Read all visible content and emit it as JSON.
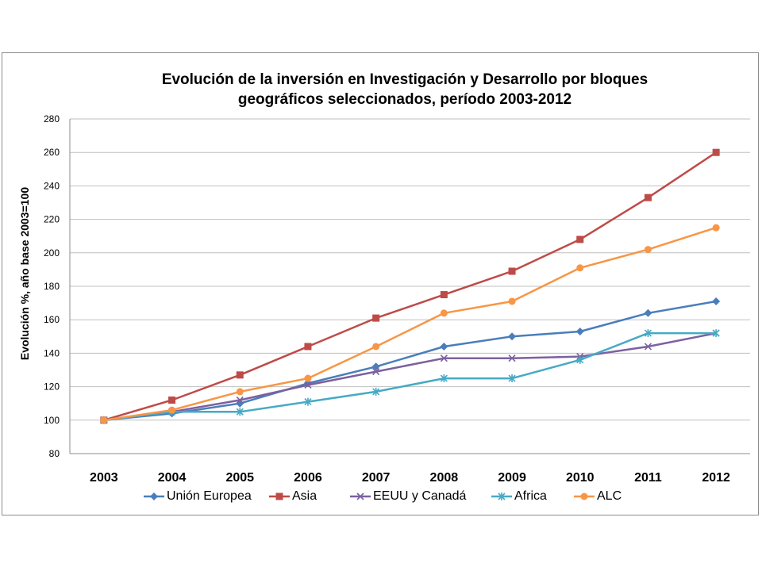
{
  "chart_data": {
    "type": "line",
    "title_lines": [
      "Evolución de la inversión en Investigación y Desarrollo por bloques",
      "geográficos seleccionados, período 2003-2012"
    ],
    "xlabel": "",
    "ylabel": "Evolución %, año base 2003=100",
    "x": [
      "2003",
      "2004",
      "2005",
      "2006",
      "2007",
      "2008",
      "2009",
      "2010",
      "2011",
      "2012"
    ],
    "ylim": [
      80,
      280
    ],
    "yticks": [
      80,
      100,
      120,
      140,
      160,
      180,
      200,
      220,
      240,
      260,
      280
    ],
    "grid": true,
    "legend_position": "bottom",
    "series": [
      {
        "name": "Unión Europea",
        "color": "#4a7ebb",
        "marker": "diamond",
        "values": [
          100,
          104,
          110,
          122,
          132,
          144,
          150,
          153,
          164,
          171
        ]
      },
      {
        "name": "Asia",
        "color": "#be4b48",
        "marker": "square",
        "values": [
          100,
          112,
          127,
          144,
          161,
          175,
          189,
          208,
          233,
          260
        ]
      },
      {
        "name": "EEUU y Canadá",
        "color": "#7d60a0",
        "marker": "x",
        "values": [
          100,
          105,
          112,
          121,
          129,
          137,
          137,
          138,
          144,
          152
        ]
      },
      {
        "name": "Africa",
        "color": "#46aac5",
        "marker": "asterisk",
        "values": [
          100,
          105,
          105,
          111,
          117,
          125,
          125,
          136,
          152,
          152
        ]
      },
      {
        "name": "ALC",
        "color": "#f79646",
        "marker": "circle",
        "values": [
          100,
          106,
          117,
          125,
          144,
          164,
          171,
          191,
          202,
          215
        ]
      }
    ]
  }
}
